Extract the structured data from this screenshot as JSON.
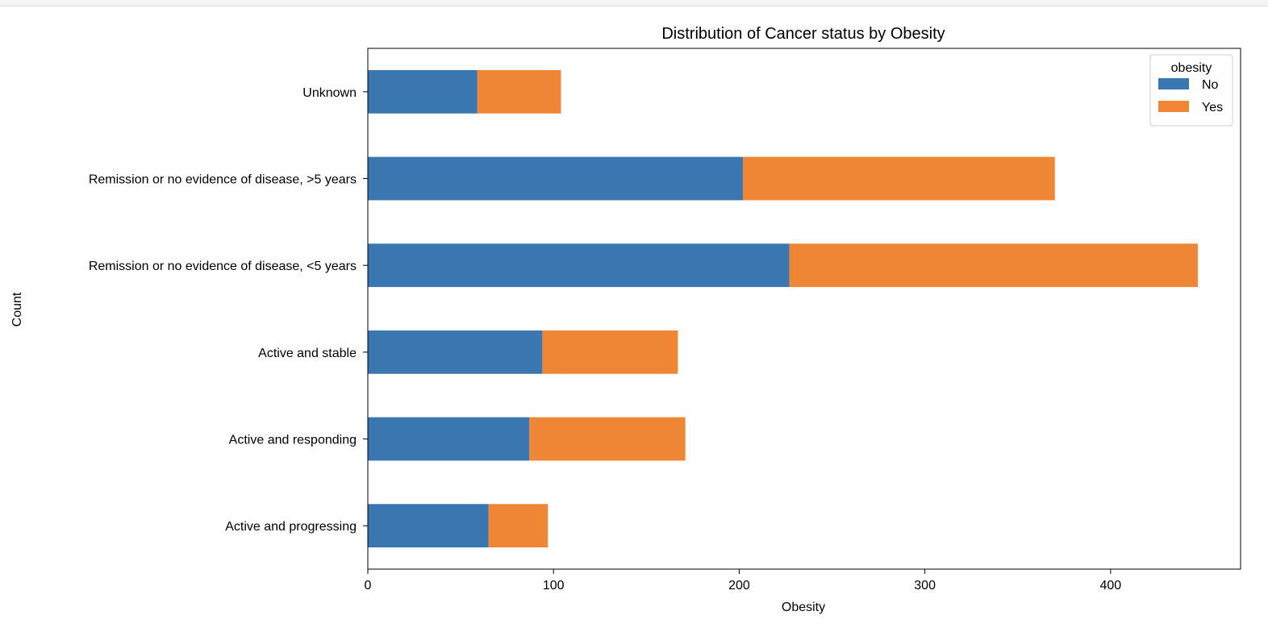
{
  "chart_data": {
    "type": "bar",
    "orientation": "horizontal",
    "stacked": true,
    "title": "Distribution of Cancer status by Obesity",
    "xlabel": "Obesity",
    "ylabel": "Count",
    "categories": [
      "Active and progressing",
      "Active and responding",
      "Active and stable",
      "Remission or no evidence of disease, <5 years",
      "Remission or no evidence of disease, >5 years",
      "Unknown"
    ],
    "series": [
      {
        "name": "No",
        "color": "#3a76af",
        "values": [
          65,
          87,
          94,
          227,
          202,
          59
        ]
      },
      {
        "name": "Yes",
        "color": "#ef8636",
        "values": [
          32,
          84,
          73,
          220,
          168,
          45
        ]
      }
    ],
    "xlim": [
      0,
      470
    ],
    "xticks": [
      0,
      100,
      200,
      300,
      400
    ],
    "grid": false,
    "legend": {
      "title": "obesity",
      "placement": "top-right"
    }
  }
}
